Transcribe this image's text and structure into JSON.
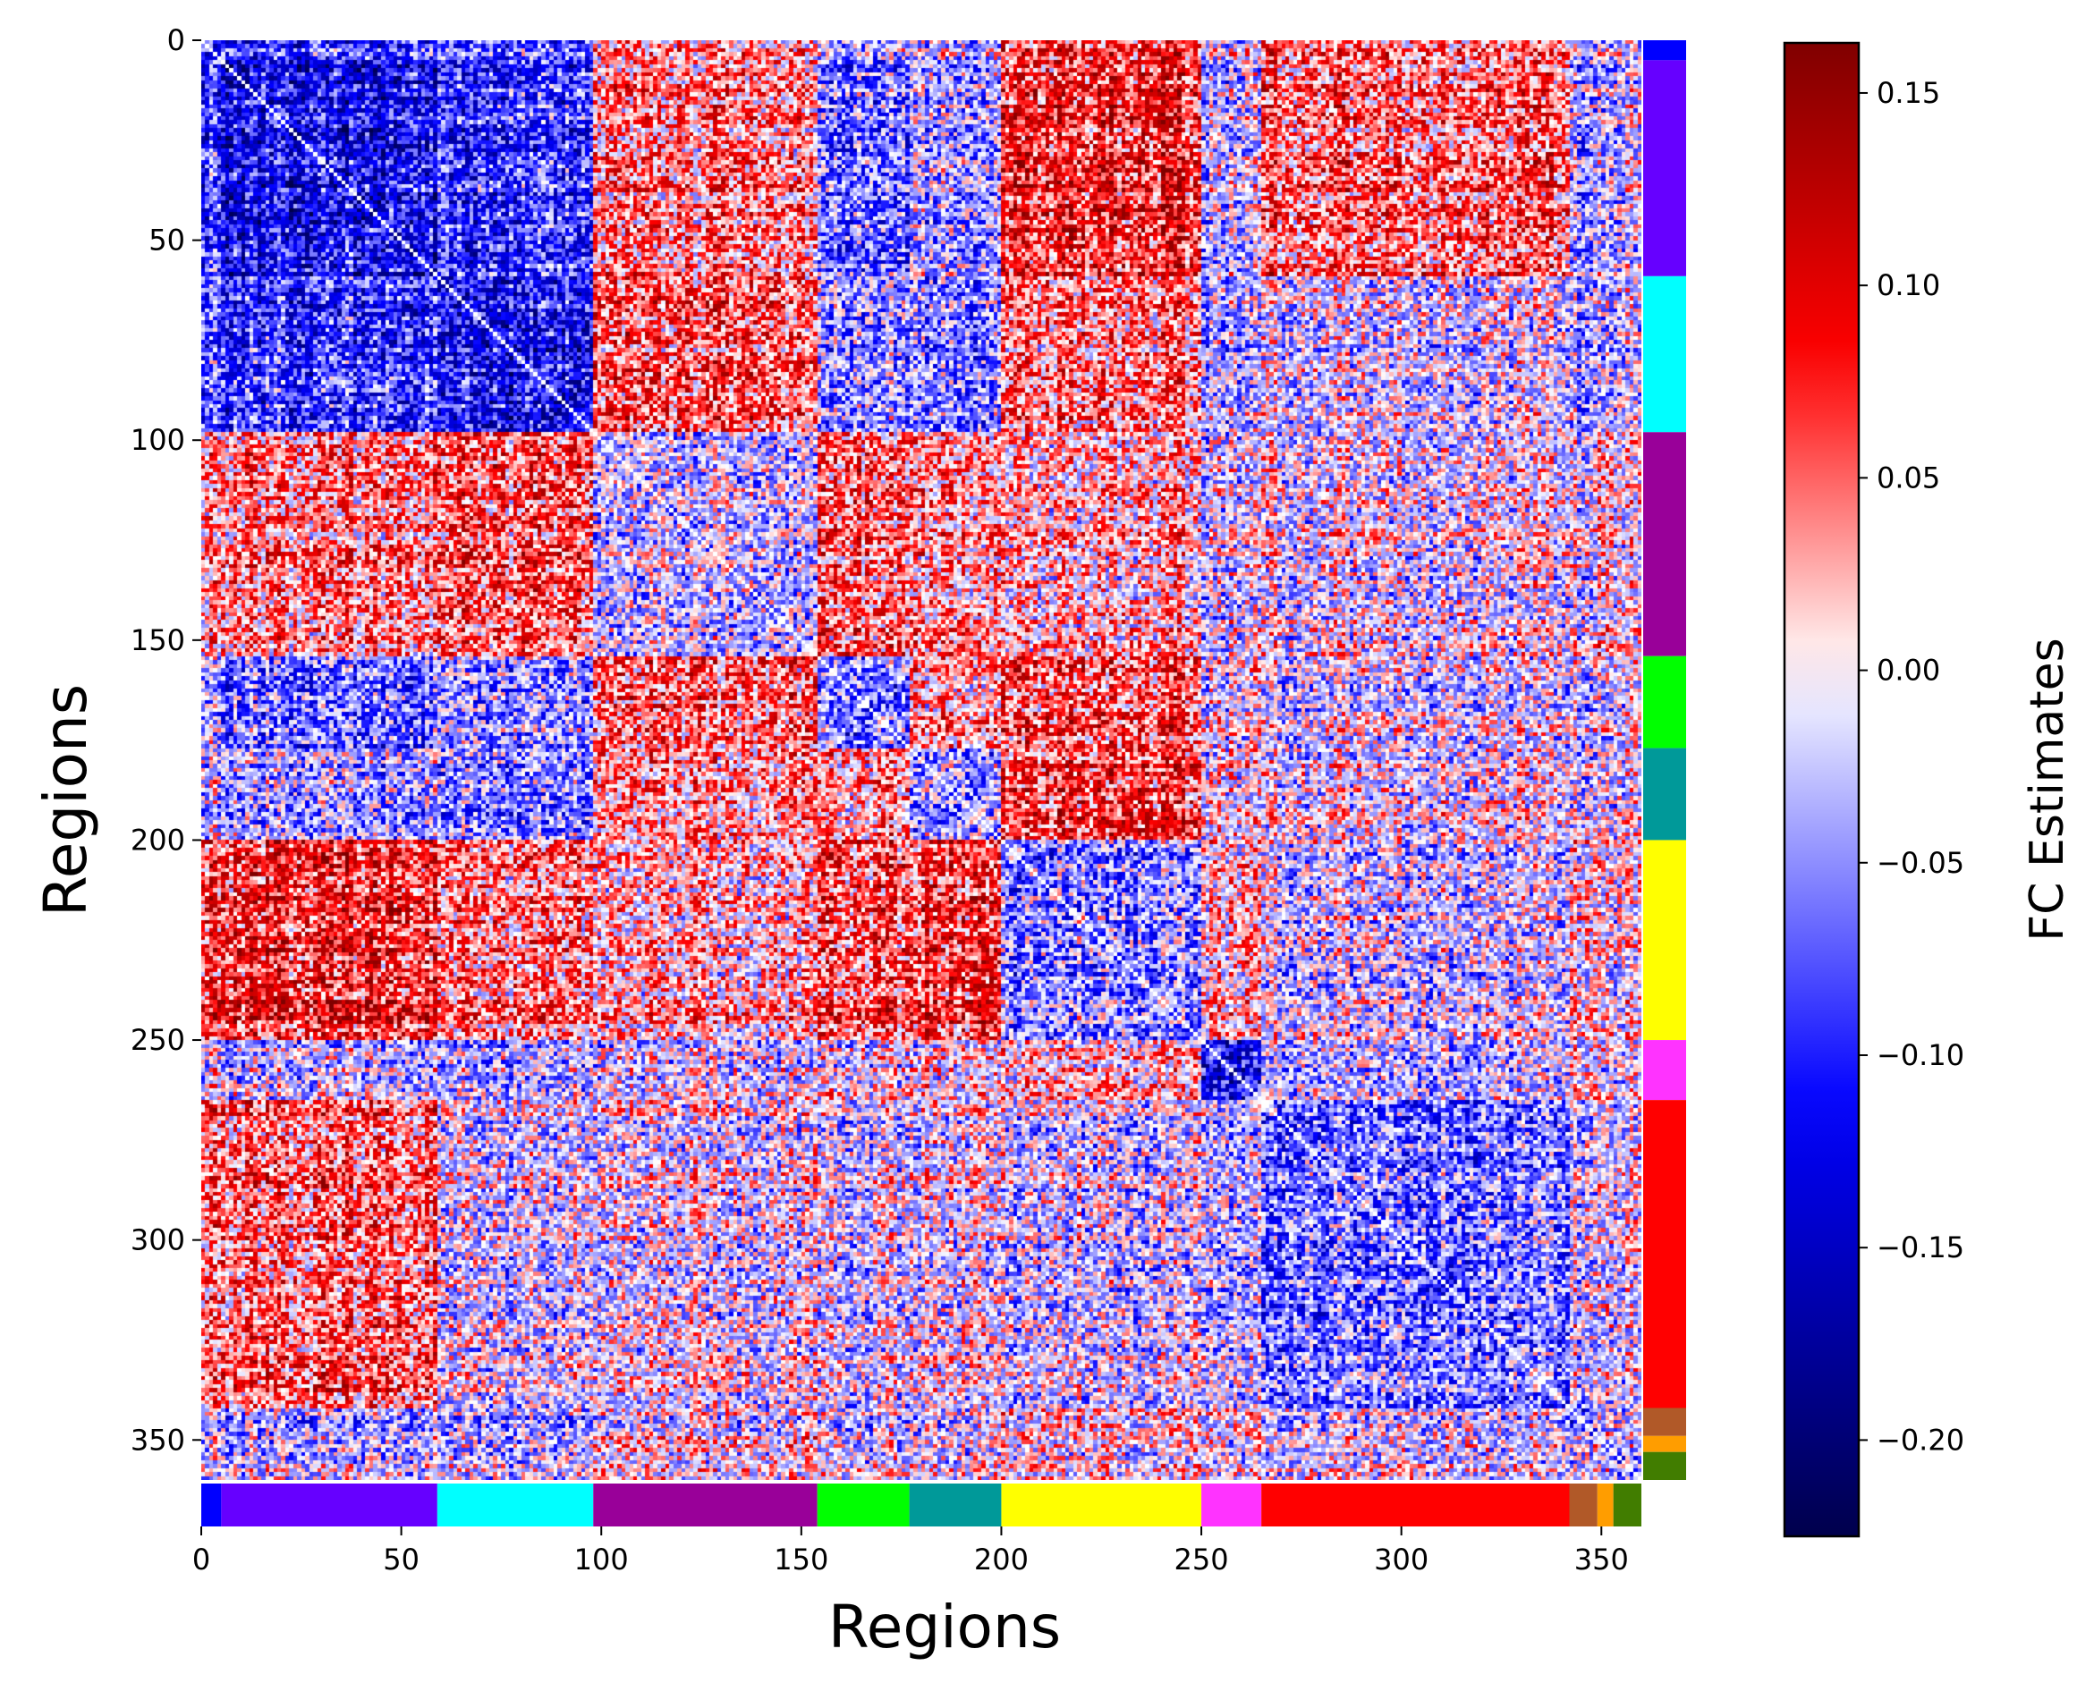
{
  "chart_data": {
    "type": "heatmap",
    "title": "",
    "xlabel": "Regions",
    "ylabel": "Regions",
    "n_regions": 360,
    "x_ticks": [
      "0",
      "50",
      "100",
      "150",
      "200",
      "250",
      "300",
      "350"
    ],
    "y_ticks": [
      "0",
      "50",
      "100",
      "150",
      "200",
      "250",
      "300",
      "350"
    ],
    "xlim": [
      0,
      360
    ],
    "ylim": [
      360,
      0
    ],
    "colorbar": {
      "label": "FC Estimates",
      "range": [
        -0.225,
        0.163
      ],
      "colormap": "seismic",
      "ticks": [
        "0.15",
        "0.10",
        "0.05",
        "0.00",
        "−0.05",
        "−0.10",
        "−0.15",
        "−0.20"
      ]
    },
    "networks": [
      {
        "start": 0,
        "end": 5,
        "color": "#0000ff"
      },
      {
        "start": 5,
        "end": 59,
        "color": "#6600ff"
      },
      {
        "start": 59,
        "end": 98,
        "color": "#00ffff"
      },
      {
        "start": 98,
        "end": 154,
        "color": "#990099"
      },
      {
        "start": 154,
        "end": 177,
        "color": "#00ff00"
      },
      {
        "start": 177,
        "end": 200,
        "color": "#009999"
      },
      {
        "start": 200,
        "end": 250,
        "color": "#ffff00"
      },
      {
        "start": 250,
        "end": 265,
        "color": "#ff33ff"
      },
      {
        "start": 265,
        "end": 342,
        "color": "#ff0000"
      },
      {
        "start": 342,
        "end": 349,
        "color": "#b15928"
      },
      {
        "start": 349,
        "end": 353,
        "color": "#ff9d00"
      },
      {
        "start": 353,
        "end": 360,
        "color": "#417d00"
      }
    ],
    "block_means": [
      [
        -0.1,
        -0.1,
        -0.08,
        0.02,
        -0.04,
        -0.03,
        0.06,
        -0.02,
        0.04,
        -0.03,
        -0.02,
        -0.02
      ],
      [
        -0.1,
        -0.12,
        -0.09,
        0.04,
        -0.06,
        -0.04,
        0.08,
        -0.03,
        0.05,
        -0.04,
        -0.03,
        -0.02
      ],
      [
        -0.08,
        -0.09,
        -0.12,
        0.05,
        -0.05,
        -0.06,
        0.04,
        -0.04,
        -0.02,
        -0.05,
        -0.04,
        -0.03
      ],
      [
        0.02,
        0.04,
        0.05,
        -0.03,
        0.05,
        0.03,
        0.02,
        -0.02,
        -0.01,
        -0.02,
        0.02,
        0.0
      ],
      [
        -0.04,
        -0.06,
        -0.05,
        0.05,
        -0.06,
        0.03,
        0.06,
        -0.01,
        -0.02,
        -0.03,
        -0.02,
        -0.01
      ],
      [
        -0.03,
        -0.04,
        -0.06,
        0.03,
        0.03,
        -0.05,
        0.07,
        0.0,
        -0.01,
        -0.03,
        -0.02,
        -0.01
      ],
      [
        0.06,
        0.08,
        0.04,
        0.02,
        0.06,
        0.07,
        -0.05,
        0.02,
        -0.02,
        0.01,
        0.0,
        0.0
      ],
      [
        -0.02,
        -0.03,
        -0.04,
        -0.02,
        -0.01,
        0.0,
        0.02,
        -0.12,
        -0.03,
        0.0,
        -0.01,
        -0.01
      ],
      [
        0.04,
        0.05,
        -0.02,
        -0.01,
        -0.02,
        -0.01,
        -0.02,
        -0.03,
        -0.06,
        -0.02,
        -0.01,
        -0.01
      ],
      [
        -0.03,
        -0.04,
        -0.05,
        -0.02,
        -0.03,
        -0.03,
        0.01,
        0.0,
        -0.02,
        -0.06,
        -0.02,
        -0.02
      ],
      [
        -0.02,
        -0.03,
        -0.04,
        0.02,
        -0.02,
        -0.02,
        0.0,
        -0.01,
        -0.01,
        -0.02,
        -0.05,
        -0.02
      ],
      [
        -0.02,
        -0.02,
        -0.03,
        0.0,
        -0.01,
        -0.01,
        0.0,
        -0.01,
        -0.01,
        -0.02,
        -0.02,
        -0.05
      ]
    ]
  }
}
